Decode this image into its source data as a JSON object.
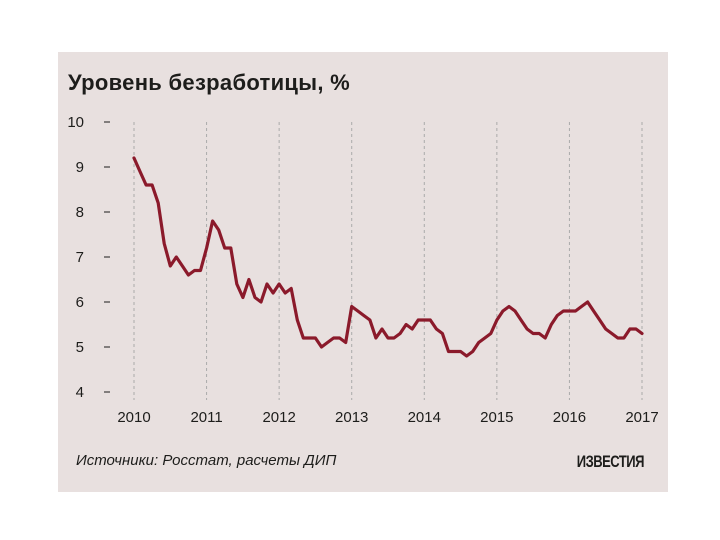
{
  "header": {
    "title": "Уровень безработицы, %"
  },
  "footer": {
    "source": "Источники: Росстат, расчеты ДИП",
    "logo": "ИЗВЕСТИЯ"
  },
  "colors": {
    "background": "#e8e0df",
    "line": "#8b1a2b",
    "grid": "#aaaaaa",
    "text": "#1d1d1b"
  },
  "chart_data": {
    "type": "line",
    "title": "Уровень безработицы, %",
    "xlabel": "",
    "ylabel": "",
    "xlim": [
      2010,
      2017
    ],
    "ylim": [
      4,
      10
    ],
    "x_ticks": [
      "2010",
      "2011",
      "2012",
      "2013",
      "2014",
      "2015",
      "2016",
      "2017"
    ],
    "y_ticks": [
      "4",
      "5",
      "6",
      "7",
      "8",
      "9",
      "10"
    ],
    "grid": "vertical-dashed-at-years",
    "series": [
      {
        "x": [
          "2010-01",
          "2010-02",
          "2010-03",
          "2010-04",
          "2010-05",
          "2010-06",
          "2010-07",
          "2010-08",
          "2010-09",
          "2010-10",
          "2010-11",
          "2010-12",
          "2011-01",
          "2011-02",
          "2011-03",
          "2011-04",
          "2011-05",
          "2011-06",
          "2011-07",
          "2011-08",
          "2011-09",
          "2011-10",
          "2011-11",
          "2011-12",
          "2012-01",
          "2012-02",
          "2012-03",
          "2012-04",
          "2012-05",
          "2012-06",
          "2012-07",
          "2012-08",
          "2012-09",
          "2012-10",
          "2012-11",
          "2012-12",
          "2013-01",
          "2013-02",
          "2013-03",
          "2013-04",
          "2013-05",
          "2013-06",
          "2013-07",
          "2013-08",
          "2013-09",
          "2013-10",
          "2013-11",
          "2013-12",
          "2014-01",
          "2014-02",
          "2014-03",
          "2014-04",
          "2014-05",
          "2014-06",
          "2014-07",
          "2014-08",
          "2014-09",
          "2014-10",
          "2014-11",
          "2014-12",
          "2015-01",
          "2015-02",
          "2015-03",
          "2015-04",
          "2015-05",
          "2015-06",
          "2015-07",
          "2015-08",
          "2015-09",
          "2015-10",
          "2015-11",
          "2015-12",
          "2016-01",
          "2016-02",
          "2016-03",
          "2016-04",
          "2016-05",
          "2016-06",
          "2016-07",
          "2016-08",
          "2016-09",
          "2016-10",
          "2016-11",
          "2016-12",
          "2017-01"
        ],
        "values": [
          9.2,
          8.9,
          8.6,
          8.6,
          8.2,
          7.3,
          6.8,
          7.0,
          6.8,
          6.6,
          6.7,
          6.7,
          7.2,
          7.8,
          7.6,
          7.2,
          7.2,
          6.4,
          6.1,
          6.5,
          6.1,
          6.0,
          6.4,
          6.2,
          6.4,
          6.2,
          6.3,
          5.6,
          5.2,
          5.2,
          5.2,
          5.0,
          5.1,
          5.2,
          5.2,
          5.1,
          5.9,
          5.8,
          5.7,
          5.6,
          5.2,
          5.4,
          5.2,
          5.2,
          5.3,
          5.5,
          5.4,
          5.6,
          5.6,
          5.6,
          5.4,
          5.3,
          4.9,
          4.9,
          4.9,
          4.8,
          4.9,
          5.1,
          5.2,
          5.3,
          5.6,
          5.8,
          5.9,
          5.8,
          5.6,
          5.4,
          5.3,
          5.3,
          5.2,
          5.5,
          5.7,
          5.8,
          5.8,
          5.8,
          5.9,
          6.0,
          5.8,
          5.6,
          5.4,
          5.3,
          5.2,
          5.2,
          5.4,
          5.4,
          5.3
        ]
      }
    ]
  }
}
